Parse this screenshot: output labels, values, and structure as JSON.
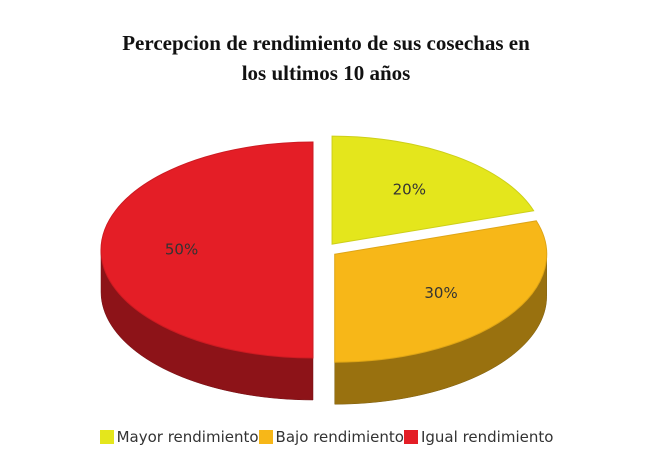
{
  "chart_data": {
    "type": "pie3d",
    "title": "Percepcion de rendimiento de sus cosechas en los ultimos 10 años",
    "categories": [
      "Mayor rendimiento",
      "Bajo rendimiento",
      "Igual rendimiento"
    ],
    "values": [
      20,
      30,
      50
    ],
    "value_labels": [
      "20%",
      "30%",
      "50%"
    ],
    "colors": [
      "#e4e61c",
      "#f7b718",
      "#e41e26"
    ],
    "legend": "bottom"
  }
}
